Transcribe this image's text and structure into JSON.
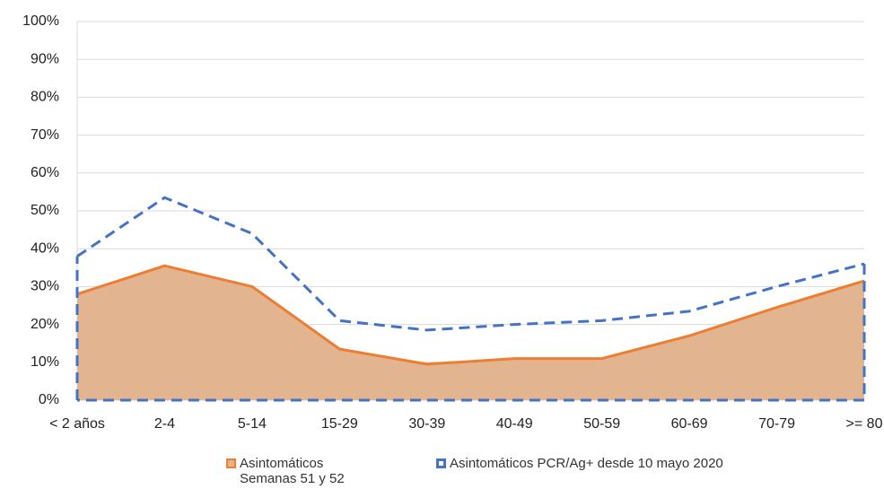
{
  "chart_data": {
    "type": "area",
    "categories": [
      "< 2 años",
      "2-4",
      "5-14",
      "15-29",
      "30-39",
      "40-49",
      "50-59",
      "60-69",
      "70-79",
      ">= 80"
    ],
    "series": [
      {
        "name": "Asintomáticos Semanas 51 y 52",
        "color": "#ed7d31",
        "fill": "#e2b48f",
        "values": [
          28,
          35.5,
          30,
          13.5,
          9.5,
          11,
          11,
          17,
          24.5,
          31.5
        ]
      },
      {
        "name": "Asintomáticos PCR/Ag+ desde 10 mayo 2020",
        "color": "#4472c4",
        "dashed": true,
        "values": [
          38,
          53.5,
          44,
          21,
          18.5,
          20,
          21,
          23.5,
          30,
          36
        ]
      }
    ],
    "ylim": [
      0,
      100
    ],
    "yticks": [
      {
        "value": 0,
        "label": "0%"
      },
      {
        "value": 10,
        "label": "10%"
      },
      {
        "value": 20,
        "label": "20%"
      },
      {
        "value": 30,
        "label": "30%"
      },
      {
        "value": 40,
        "label": "40%"
      },
      {
        "value": 50,
        "label": "50%"
      },
      {
        "value": 60,
        "label": "60%"
      },
      {
        "value": 70,
        "label": "70%"
      },
      {
        "value": 80,
        "label": "80%"
      },
      {
        "value": 90,
        "label": "90%"
      },
      {
        "value": 100,
        "label": "100%"
      }
    ],
    "grid": true
  }
}
